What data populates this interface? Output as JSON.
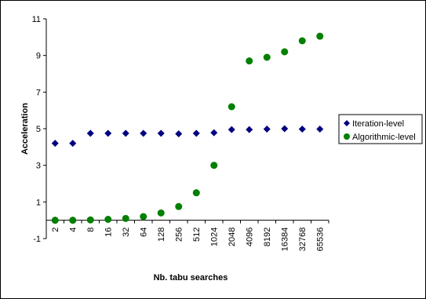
{
  "chart_data": {
    "type": "scatter",
    "title": "",
    "xlabel": "Nb. tabu searches",
    "ylabel": "Acceleration",
    "categories": [
      "2",
      "4",
      "8",
      "16",
      "32",
      "64",
      "128",
      "256",
      "512",
      "1024",
      "2048",
      "4096",
      "8192",
      "16384",
      "32768",
      "65536"
    ],
    "ylim": [
      -1,
      11
    ],
    "yticks": [
      "-1",
      "1",
      "3",
      "5",
      "7",
      "9",
      "11"
    ],
    "grid": false,
    "legend_position": "right",
    "series": [
      {
        "name": "Iteration-level",
        "marker": "diamond",
        "color": "#000080",
        "values": [
          4.2,
          4.2,
          4.75,
          4.75,
          4.75,
          4.75,
          4.75,
          4.72,
          4.75,
          4.78,
          4.95,
          4.95,
          4.98,
          5.0,
          4.98,
          4.98
        ]
      },
      {
        "name": "Algorithmic-level",
        "marker": "circle",
        "color": "#008000",
        "values": [
          0.0,
          0.0,
          0.02,
          0.05,
          0.1,
          0.2,
          0.4,
          0.75,
          1.5,
          3.0,
          6.2,
          8.7,
          8.9,
          9.2,
          9.8,
          10.05
        ]
      }
    ]
  }
}
